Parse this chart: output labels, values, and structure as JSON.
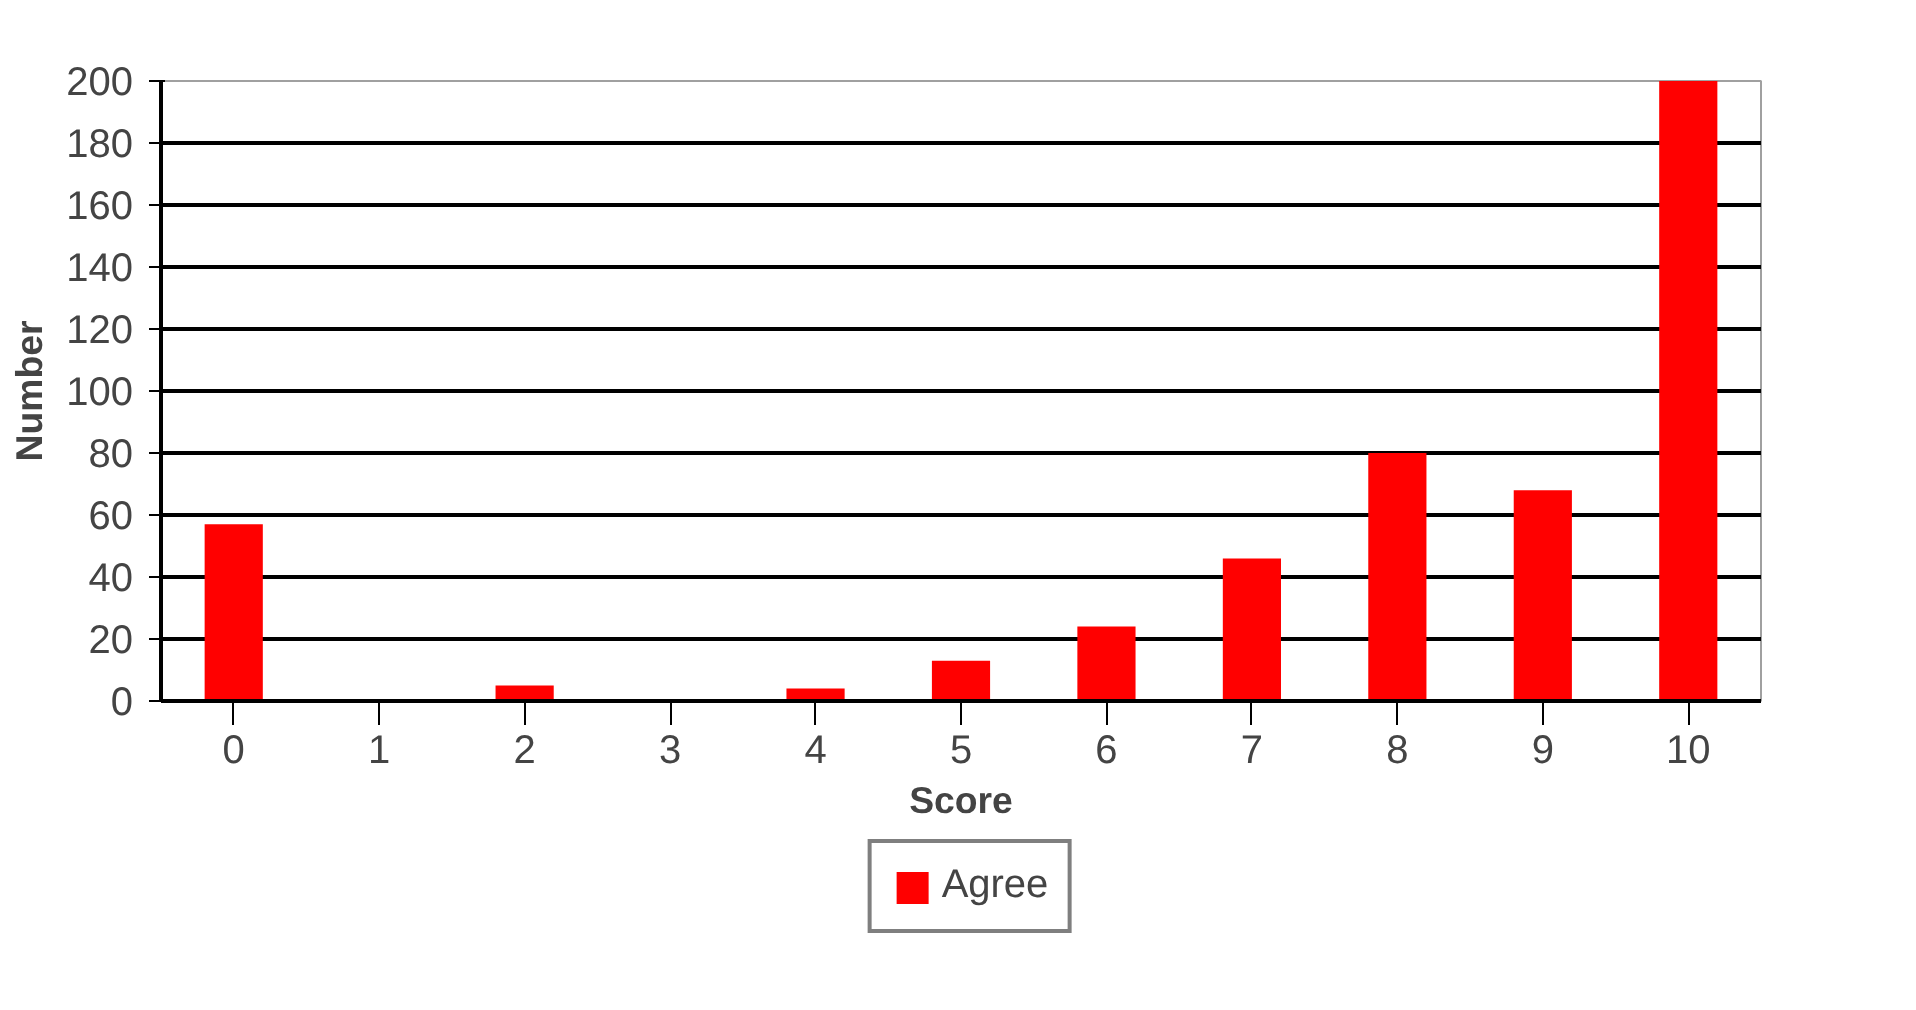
{
  "chart_data": {
    "type": "bar",
    "xlabel": "Score",
    "ylabel": "Number",
    "categories": [
      "0",
      "1",
      "2",
      "3",
      "4",
      "5",
      "6",
      "7",
      "8",
      "9",
      "10"
    ],
    "series": [
      {
        "name": "Agree",
        "color": "#ff0000",
        "values": [
          57,
          0,
          5,
          0,
          4,
          13,
          24,
          46,
          80,
          68,
          200
        ]
      }
    ],
    "ylim": [
      0,
      200
    ],
    "yticks": [
      0,
      20,
      40,
      60,
      80,
      100,
      120,
      140,
      160,
      180,
      200
    ],
    "grid": "y",
    "legend": "bottom"
  }
}
